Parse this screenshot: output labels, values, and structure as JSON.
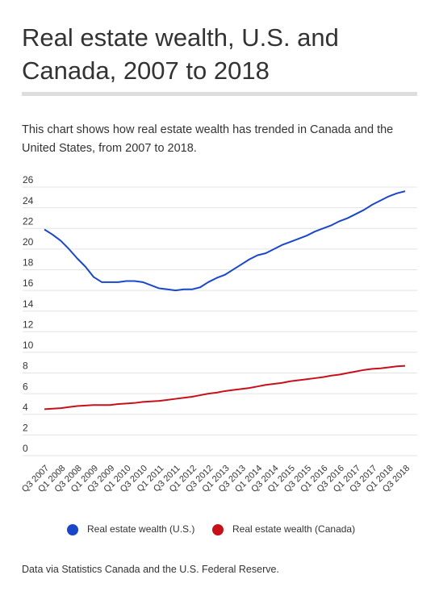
{
  "chart_data": {
    "type": "line",
    "title": "Real estate wealth, U.S. and Canada, 2007 to 2018",
    "subtitle": "This chart shows how real estate wealth has trended in Canada and the United States, from 2007 to 2018.",
    "source": "Data via Statistics Canada and the U.S. Federal Reserve.",
    "categories": [
      "Q3 2007",
      null,
      "Q1 2008",
      null,
      "Q3 2008",
      null,
      "Q1 2009",
      null,
      "Q3 2009",
      null,
      "Q1 2010",
      null,
      "Q3 2010",
      null,
      "Q1 2011",
      null,
      "Q3 2011",
      null,
      "Q1 2012",
      null,
      "Q3 2012",
      null,
      "Q1 2013",
      null,
      "Q3 2013",
      null,
      "Q1 2014",
      null,
      "Q3 2014",
      null,
      "Q1 2015",
      null,
      "Q3 2015",
      null,
      "Q1 2016",
      null,
      "Q3 2016",
      null,
      "Q1 2017",
      null,
      "Q3 2017",
      null,
      "Q1 2018",
      null,
      "Q3 2018"
    ],
    "series": [
      {
        "name": "Real estate wealth (U.S.)",
        "color": "#1a47c9",
        "values": [
          21.9,
          21.4,
          20.8,
          20.0,
          19.1,
          18.3,
          17.3,
          16.8,
          16.8,
          16.8,
          16.9,
          16.9,
          16.8,
          16.5,
          16.2,
          16.1,
          16.0,
          16.1,
          16.1,
          16.3,
          16.8,
          17.2,
          17.5,
          18.0,
          18.5,
          19.0,
          19.4,
          19.6,
          20.0,
          20.4,
          20.7,
          21.0,
          21.3,
          21.7,
          22.0,
          22.3,
          22.7,
          23.0,
          23.4,
          23.8,
          24.3,
          24.7,
          25.1,
          25.4,
          25.6
        ]
      },
      {
        "name": "Real estate wealth (Canada)",
        "color": "#c8101a",
        "values": [
          4.5,
          4.55,
          4.6,
          4.7,
          4.8,
          4.85,
          4.9,
          4.9,
          4.9,
          5.0,
          5.05,
          5.1,
          5.2,
          5.25,
          5.3,
          5.4,
          5.5,
          5.6,
          5.7,
          5.85,
          6.0,
          6.1,
          6.25,
          6.35,
          6.45,
          6.55,
          6.7,
          6.85,
          6.95,
          7.05,
          7.2,
          7.3,
          7.4,
          7.5,
          7.6,
          7.75,
          7.85,
          8.0,
          8.15,
          8.3,
          8.4,
          8.45,
          8.55,
          8.65,
          8.7
        ]
      }
    ],
    "ylim": [
      0,
      26
    ],
    "yticks": [
      0,
      2,
      4,
      6,
      8,
      10,
      12,
      14,
      16,
      18,
      20,
      22,
      24,
      26
    ],
    "grid": true,
    "legend": "bottom"
  }
}
